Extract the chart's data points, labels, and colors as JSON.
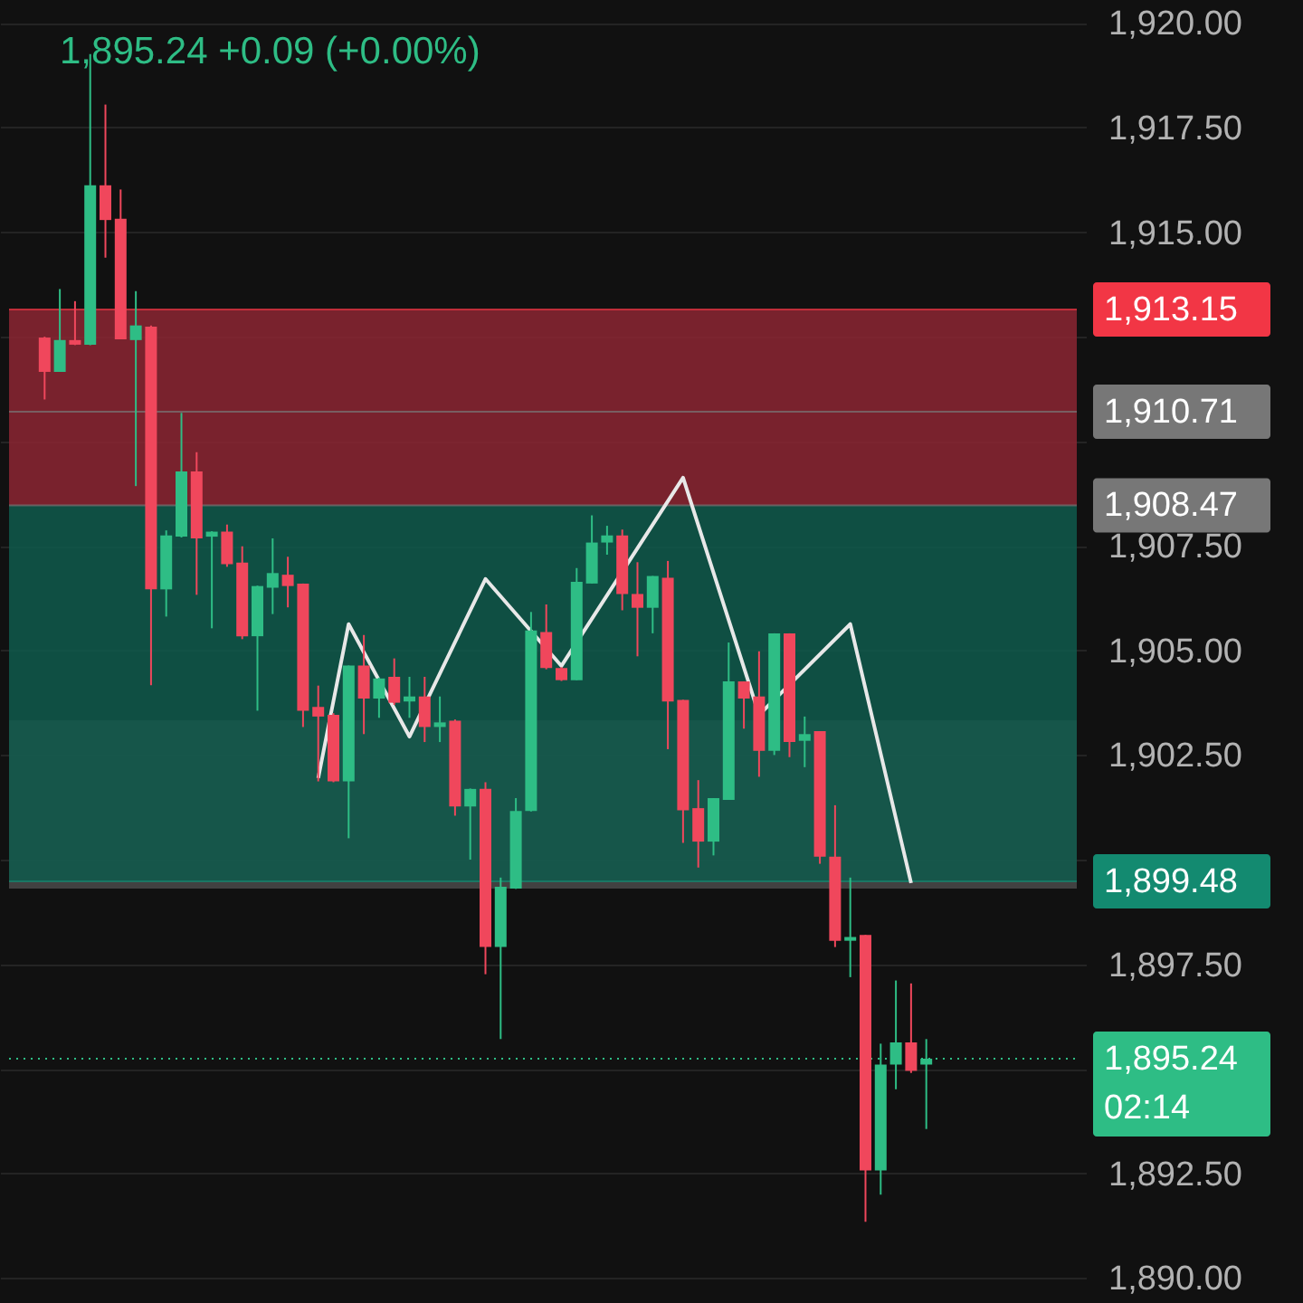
{
  "chart_data": {
    "type": "candlestick",
    "title": "1,895.24  +0.09 (+0.00%)",
    "categories": [
      null,
      null,
      null,
      null,
      null,
      null,
      null,
      null,
      null,
      null,
      null,
      null,
      null,
      null,
      null,
      null,
      null,
      null,
      null,
      null,
      null,
      null,
      null,
      null,
      null,
      null,
      null,
      null,
      null,
      null,
      null,
      null,
      null,
      null,
      null,
      null,
      null,
      null,
      null,
      null,
      null,
      null,
      null,
      null,
      null,
      null,
      null,
      null,
      null,
      null,
      null,
      null,
      null,
      null,
      null,
      null,
      null,
      null,
      null
    ],
    "ohlc": [
      [
        1912.48,
        1912.5,
        1911.0,
        1911.66
      ],
      [
        1911.66,
        1913.64,
        1911.66,
        1912.42
      ],
      [
        1912.42,
        1913.35,
        1912.3,
        1912.31
      ],
      [
        1912.31,
        1919.26,
        1912.3,
        1916.12
      ],
      [
        1916.12,
        1918.05,
        1914.39,
        1915.29
      ],
      [
        1915.32,
        1916.02,
        1912.44,
        1912.44
      ],
      [
        1912.42,
        1913.59,
        1908.93,
        1912.77
      ],
      [
        1912.74,
        1912.77,
        1904.17,
        1906.46
      ],
      [
        1906.46,
        1907.87,
        1905.81,
        1907.75
      ],
      [
        1907.72,
        1910.68,
        1907.7,
        1909.28
      ],
      [
        1909.28,
        1909.74,
        1906.33,
        1907.68
      ],
      [
        1907.72,
        1907.85,
        1905.53,
        1907.84
      ],
      [
        1907.84,
        1908.01,
        1907.0,
        1907.06
      ],
      [
        1907.1,
        1907.49,
        1905.27,
        1905.34
      ],
      [
        1905.34,
        1906.55,
        1903.56,
        1906.54
      ],
      [
        1906.5,
        1907.68,
        1905.87,
        1906.85
      ],
      [
        1906.81,
        1907.24,
        1906.03,
        1906.54
      ],
      [
        1906.6,
        1906.6,
        1903.17,
        1903.56
      ],
      [
        1903.65,
        1904.16,
        1901.87,
        1903.42
      ],
      [
        1903.46,
        1903.5,
        1901.85,
        1901.87
      ],
      [
        1901.87,
        1904.64,
        1900.51,
        1904.64
      ],
      [
        1904.64,
        1905.37,
        1903.0,
        1903.85
      ],
      [
        1903.85,
        1904.35,
        1903.39,
        1904.33
      ],
      [
        1904.37,
        1904.81,
        1903.7,
        1903.75
      ],
      [
        1903.78,
        1904.37,
        1903.39,
        1903.9
      ],
      [
        1903.9,
        1904.37,
        1902.81,
        1903.17
      ],
      [
        1903.17,
        1903.9,
        1902.81,
        1903.28
      ],
      [
        1903.32,
        1903.35,
        1901.05,
        1901.27
      ],
      [
        1901.27,
        1901.7,
        1900.0,
        1901.69
      ],
      [
        1901.69,
        1901.85,
        1897.26,
        1897.91
      ],
      [
        1897.91,
        1899.57,
        1895.71,
        1899.35
      ],
      [
        1899.31,
        1901.47,
        1899.3,
        1901.16
      ],
      [
        1901.16,
        1905.92,
        1901.15,
        1905.48
      ],
      [
        1905.44,
        1906.1,
        1904.55,
        1904.58
      ],
      [
        1904.58,
        1904.6,
        1904.27,
        1904.29
      ],
      [
        1904.29,
        1906.97,
        1904.29,
        1906.64
      ],
      [
        1906.6,
        1908.23,
        1906.6,
        1907.58
      ],
      [
        1907.58,
        1907.98,
        1907.29,
        1907.75
      ],
      [
        1907.75,
        1907.89,
        1905.96,
        1906.35
      ],
      [
        1906.35,
        1907.11,
        1904.86,
        1906.02
      ],
      [
        1906.02,
        1906.78,
        1905.41,
        1906.78
      ],
      [
        1906.74,
        1907.14,
        1902.64,
        1903.78
      ],
      [
        1903.82,
        1903.82,
        1900.4,
        1901.18
      ],
      [
        1901.23,
        1901.9,
        1899.81,
        1900.43
      ],
      [
        1900.43,
        1901.47,
        1900.1,
        1901.47
      ],
      [
        1901.43,
        1905.19,
        1901.43,
        1904.26
      ],
      [
        1904.26,
        1904.26,
        1903.13,
        1903.85
      ],
      [
        1903.9,
        1904.98,
        1901.98,
        1902.6
      ],
      [
        1902.6,
        1905.41,
        1902.5,
        1905.41
      ],
      [
        1905.41,
        1905.41,
        1902.45,
        1902.81
      ],
      [
        1902.84,
        1903.42,
        1902.21,
        1903.0
      ],
      [
        1903.07,
        1903.07,
        1899.9,
        1900.07
      ],
      [
        1900.07,
        1901.3,
        1897.91,
        1898.06
      ],
      [
        1898.06,
        1899.57,
        1897.19,
        1898.15
      ],
      [
        1898.2,
        1898.2,
        1891.34,
        1892.57
      ],
      [
        1892.57,
        1895.6,
        1891.99,
        1895.1
      ],
      [
        1895.1,
        1897.11,
        1894.51,
        1895.63
      ],
      [
        1895.63,
        1897.04,
        1894.9,
        1894.95
      ],
      [
        1895.1,
        1895.71,
        1893.56,
        1895.24
      ]
    ],
    "colors": [
      "#f0475c",
      "#2ebd85",
      "#f0475c",
      "#2ebd85",
      "#f0475c",
      "#f0475c",
      "#2ebd85",
      "#f0475c",
      "#2ebd85",
      "#2ebd85",
      "#f0475c",
      "#2ebd85",
      "#f0475c",
      "#f0475c",
      "#2ebd85",
      "#2ebd85",
      "#f0475c",
      "#f0475c",
      "#f0475c",
      "#f0475c",
      "#2ebd85",
      "#f0475c",
      "#2ebd85",
      "#f0475c",
      "#2ebd85",
      "#f0475c",
      "#2ebd85",
      "#f0475c",
      "#2ebd85",
      "#f0475c",
      "#2ebd85",
      "#2ebd85",
      "#2ebd85",
      "#f0475c",
      "#f0475c",
      "#2ebd85",
      "#2ebd85",
      "#2ebd85",
      "#f0475c",
      "#f0475c",
      "#2ebd85",
      "#f0475c",
      "#f0475c",
      "#f0475c",
      "#2ebd85",
      "#2ebd85",
      "#f0475c",
      "#f0475c",
      "#2ebd85",
      "#f0475c",
      "#2ebd85",
      "#f0475c",
      "#f0475c",
      "#2ebd85",
      "#f0475c",
      "#2ebd85",
      "#2ebd85",
      "#f0475c",
      "#2ebd85"
    ],
    "series": [
      {
        "type": "line",
        "color": "#e8e8e8",
        "values": [
          null,
          null,
          null,
          null,
          null,
          null,
          null,
          null,
          null,
          null,
          null,
          null,
          null,
          null,
          null,
          null,
          null,
          null,
          1901.95,
          null,
          1905.63,
          null,
          null,
          null,
          1902.94,
          null,
          null,
          null,
          null,
          1906.71,
          null,
          null,
          null,
          null,
          1904.63,
          null,
          null,
          null,
          null,
          null,
          null,
          null,
          1909.13,
          null,
          null,
          null,
          null,
          1903.46,
          null,
          null,
          null,
          null,
          null,
          1905.63,
          null,
          null,
          null,
          1899.44,
          null
        ]
      }
    ],
    "bands": [
      {
        "axis": "y",
        "from": 1899.31,
        "to": 1903.33,
        "color": "#4a4a4a"
      },
      {
        "axis": "y",
        "from": 1899.48,
        "to": 1908.47,
        "color": "#0f5b4c"
      },
      {
        "axis": "y",
        "from": 1908.47,
        "to": 1913.15,
        "color": "#8c2632"
      }
    ],
    "ref_lines": [
      {
        "axis": "y",
        "value": 1913.15,
        "label": "1,913.15",
        "color": "#f23645"
      },
      {
        "axis": "y",
        "value": 1910.71,
        "label": "1,910.71",
        "color": "#777777"
      },
      {
        "axis": "y",
        "value": 1908.47,
        "label": "1,908.47",
        "color": "#777777"
      },
      {
        "axis": "y",
        "value": 1899.48,
        "label": "1,899.48",
        "color": "#138a70"
      },
      {
        "axis": "y",
        "value": 1895.24,
        "label": "1,895.24",
        "color": "#2ebd85",
        "line_style": "dotted"
      }
    ],
    "annotations": [
      "02:14"
    ],
    "ylim": [
      1889.4,
      1920.55
    ],
    "yticks": [
      {
        "value": 1890,
        "label": "1,890.00"
      },
      {
        "value": 1892.5,
        "label": "1,892.50"
      },
      {
        "value": 1895,
        "label": null
      },
      {
        "value": 1897.5,
        "label": "1,897.50"
      },
      {
        "value": 1900,
        "label": null
      },
      {
        "value": 1902.5,
        "label": "1,902.50"
      },
      {
        "value": 1905,
        "label": "1,905.00"
      },
      {
        "value": 1907.5,
        "label": "1,907.50"
      },
      {
        "value": 1910,
        "label": null
      },
      {
        "value": 1912.5,
        "label": null
      },
      {
        "value": 1915,
        "label": "1,915.00"
      },
      {
        "value": 1917.5,
        "label": "1,917.50"
      },
      {
        "value": 1920,
        "label": "1,920.00"
      }
    ],
    "grid": "y"
  }
}
